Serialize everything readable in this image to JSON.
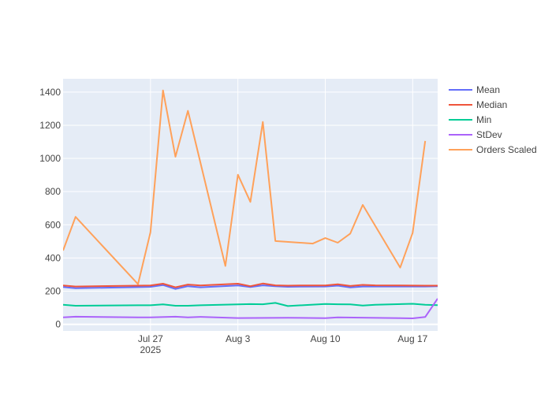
{
  "chart_data": {
    "type": "line",
    "x_type": "date",
    "x_range": [
      "2025-07-20",
      "2025-08-19"
    ],
    "y_range": [
      -40,
      1480
    ],
    "grid": true,
    "legend_placement": "top-right",
    "x_ticks": [
      {
        "value": "2025-07-27",
        "label": "Jul 27",
        "sublabel": "2025"
      },
      {
        "value": "2025-08-03",
        "label": "Aug 3"
      },
      {
        "value": "2025-08-10",
        "label": "Aug 10"
      },
      {
        "value": "2025-08-17",
        "label": "Aug 17"
      }
    ],
    "y_ticks": [
      0,
      200,
      400,
      600,
      800,
      1000,
      1200,
      1400
    ],
    "series": [
      {
        "name": "Mean",
        "color": "#636efa",
        "points": [
          [
            "2025-07-20",
            225
          ],
          [
            "2025-07-21",
            218
          ],
          [
            "2025-07-26",
            224
          ],
          [
            "2025-07-27",
            226
          ],
          [
            "2025-07-28",
            237
          ],
          [
            "2025-07-29",
            213
          ],
          [
            "2025-07-30",
            230
          ],
          [
            "2025-07-31",
            223
          ],
          [
            "2025-08-03",
            234
          ],
          [
            "2025-08-04",
            225
          ],
          [
            "2025-08-05",
            235
          ],
          [
            "2025-08-06",
            230
          ],
          [
            "2025-08-07",
            226
          ],
          [
            "2025-08-08",
            227
          ],
          [
            "2025-08-10",
            228
          ],
          [
            "2025-08-11",
            233
          ],
          [
            "2025-08-12",
            222
          ],
          [
            "2025-08-13",
            228
          ],
          [
            "2025-08-14",
            228
          ],
          [
            "2025-08-18",
            228
          ],
          [
            "2025-08-19",
            230
          ]
        ]
      },
      {
        "name": "Median",
        "color": "#ef553b",
        "points": [
          [
            "2025-07-20",
            234
          ],
          [
            "2025-07-21",
            228
          ],
          [
            "2025-07-26",
            233
          ],
          [
            "2025-07-27",
            234
          ],
          [
            "2025-07-28",
            245
          ],
          [
            "2025-07-29",
            223
          ],
          [
            "2025-07-30",
            240
          ],
          [
            "2025-07-31",
            234
          ],
          [
            "2025-08-03",
            245
          ],
          [
            "2025-08-04",
            230
          ],
          [
            "2025-08-05",
            246
          ],
          [
            "2025-08-06",
            235
          ],
          [
            "2025-08-07",
            233
          ],
          [
            "2025-08-08",
            234
          ],
          [
            "2025-08-10",
            234
          ],
          [
            "2025-08-11",
            241
          ],
          [
            "2025-08-12",
            231
          ],
          [
            "2025-08-13",
            238
          ],
          [
            "2025-08-14",
            235
          ],
          [
            "2025-08-18",
            233
          ],
          [
            "2025-08-19",
            233
          ]
        ]
      },
      {
        "name": "Min",
        "color": "#00cc96",
        "points": [
          [
            "2025-07-20",
            118
          ],
          [
            "2025-07-21",
            112
          ],
          [
            "2025-07-26",
            115
          ],
          [
            "2025-07-27",
            115
          ],
          [
            "2025-07-28",
            120
          ],
          [
            "2025-07-29",
            112
          ],
          [
            "2025-07-30",
            112
          ],
          [
            "2025-07-31",
            115
          ],
          [
            "2025-08-03",
            120
          ],
          [
            "2025-08-04",
            122
          ],
          [
            "2025-08-05",
            121
          ],
          [
            "2025-08-06",
            129
          ],
          [
            "2025-08-07",
            110
          ],
          [
            "2025-08-10",
            123
          ],
          [
            "2025-08-11",
            121
          ],
          [
            "2025-08-12",
            120
          ],
          [
            "2025-08-13",
            113
          ],
          [
            "2025-08-14",
            118
          ],
          [
            "2025-08-17",
            124
          ],
          [
            "2025-08-18",
            118
          ],
          [
            "2025-08-19",
            116
          ]
        ]
      },
      {
        "name": "StDev",
        "color": "#ab63fa",
        "points": [
          [
            "2025-07-20",
            42
          ],
          [
            "2025-07-21",
            46
          ],
          [
            "2025-07-26",
            42
          ],
          [
            "2025-07-27",
            42
          ],
          [
            "2025-07-29",
            46
          ],
          [
            "2025-07-30",
            42
          ],
          [
            "2025-07-31",
            45
          ],
          [
            "2025-08-03",
            38
          ],
          [
            "2025-08-07",
            40
          ],
          [
            "2025-08-10",
            37
          ],
          [
            "2025-08-11",
            42
          ],
          [
            "2025-08-17",
            36
          ],
          [
            "2025-08-18",
            44
          ],
          [
            "2025-08-19",
            155
          ]
        ]
      },
      {
        "name": "Orders Scaled",
        "color": "#ffa15a",
        "points": [
          [
            "2025-07-20",
            445
          ],
          [
            "2025-07-21",
            648
          ],
          [
            "2025-07-26",
            242
          ],
          [
            "2025-07-27",
            555
          ],
          [
            "2025-07-28",
            1410
          ],
          [
            "2025-07-29",
            1010
          ],
          [
            "2025-07-30",
            1287
          ],
          [
            "2025-08-02",
            352
          ],
          [
            "2025-08-03",
            902
          ],
          [
            "2025-08-04",
            738
          ],
          [
            "2025-08-05",
            1220
          ],
          [
            "2025-08-06",
            502
          ],
          [
            "2025-08-09",
            487
          ],
          [
            "2025-08-10",
            520
          ],
          [
            "2025-08-11",
            492
          ],
          [
            "2025-08-12",
            547
          ],
          [
            "2025-08-13",
            720
          ],
          [
            "2025-08-16",
            342
          ],
          [
            "2025-08-17",
            552
          ],
          [
            "2025-08-18",
            1105
          ]
        ]
      }
    ]
  }
}
